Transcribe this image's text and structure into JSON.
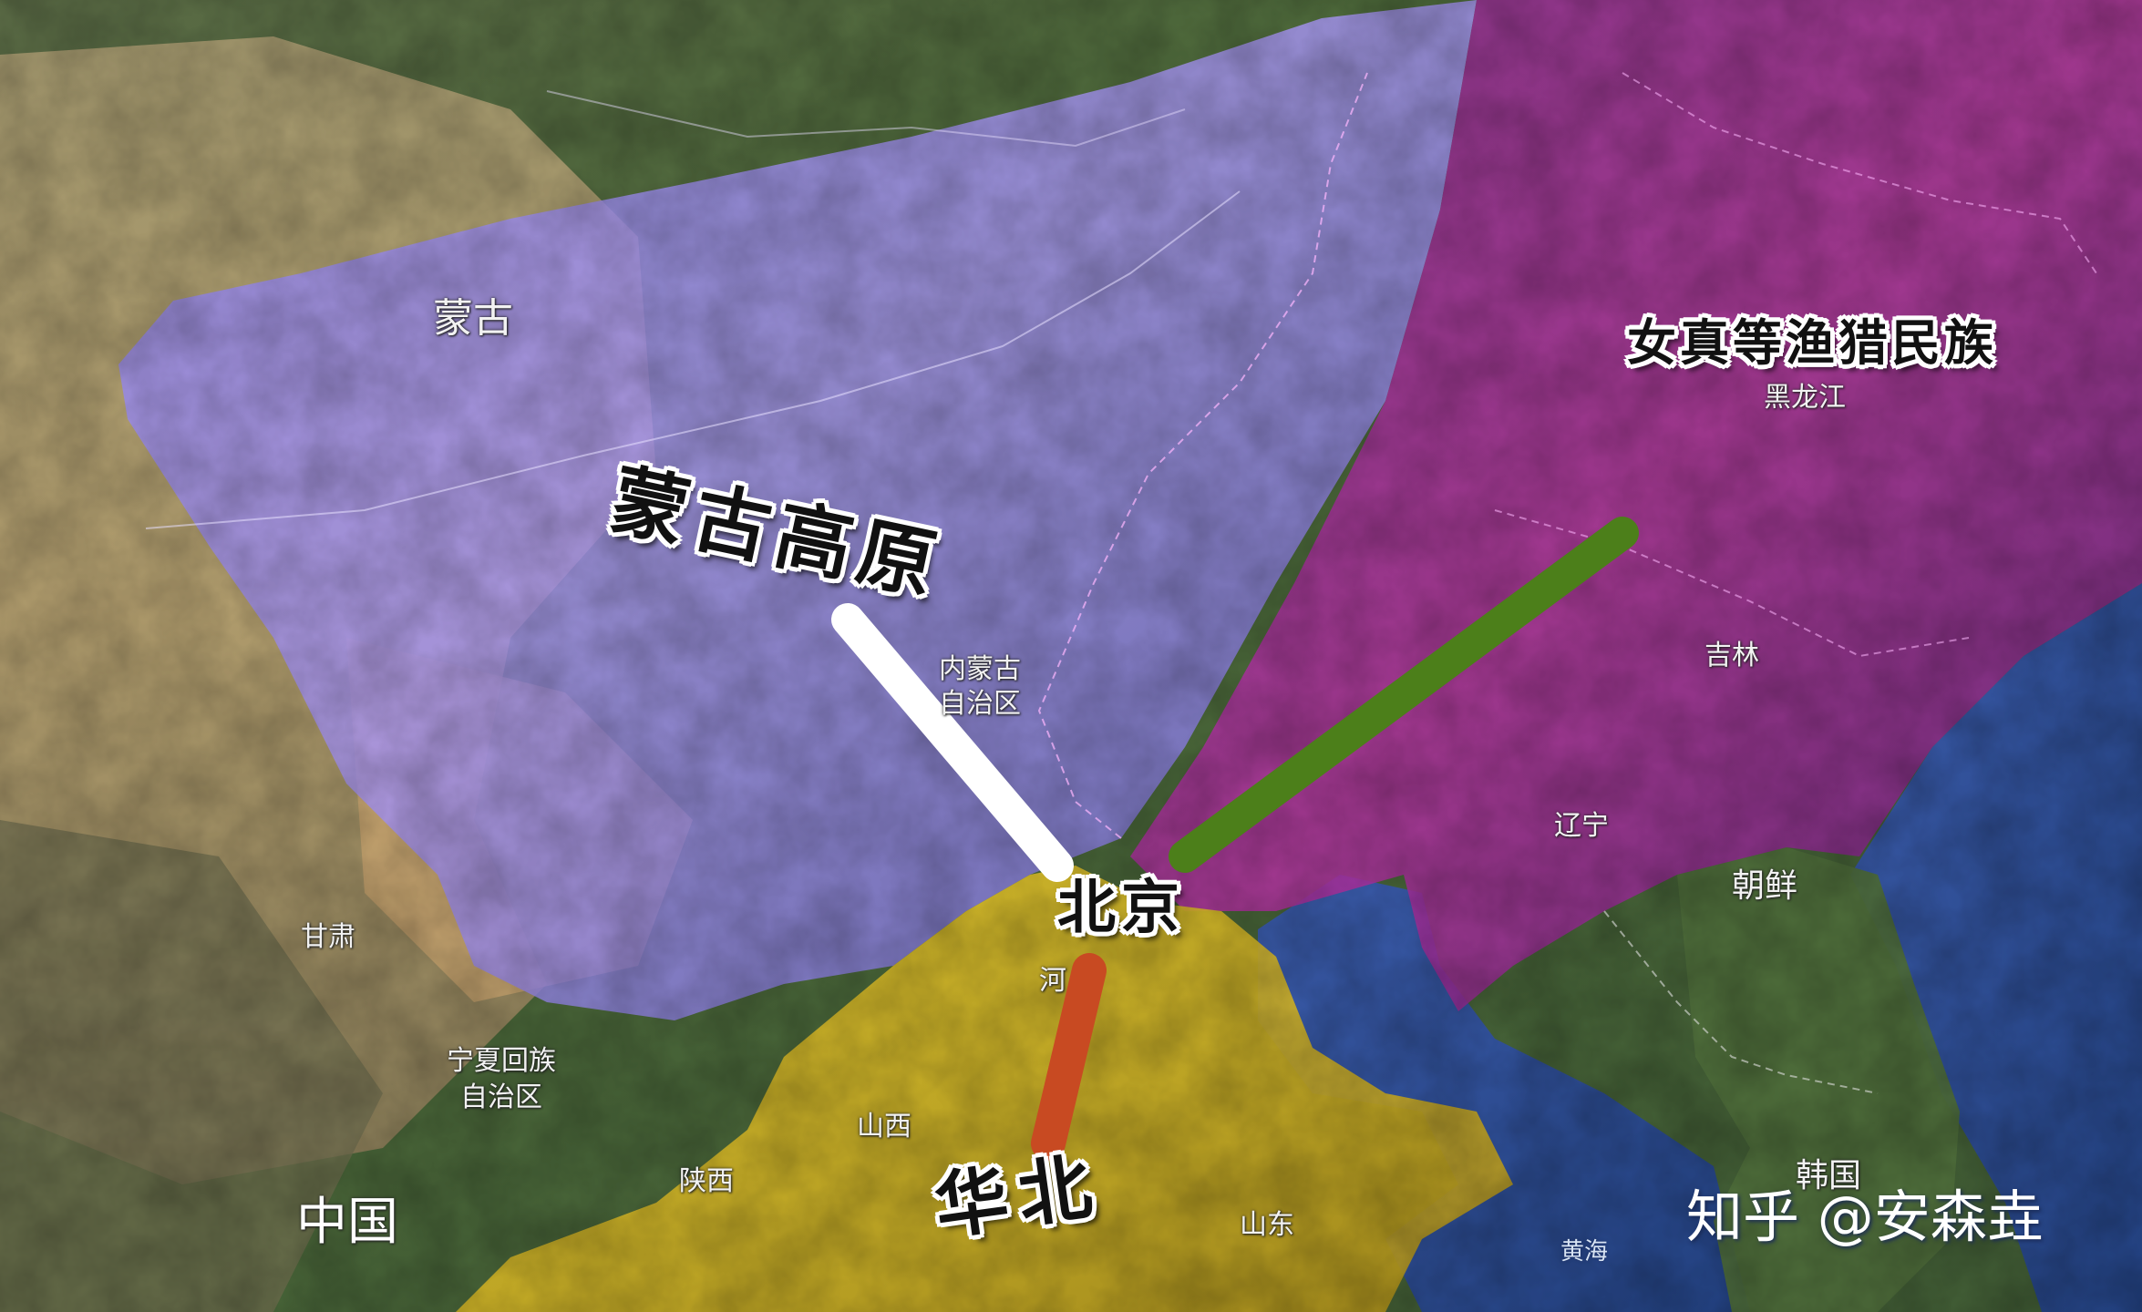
{
  "map": {
    "colors": {
      "terrain_green": "#4f6a3a",
      "terrain_desert": "#b49a6a",
      "sea": "#2e4d96",
      "mongolia_zone": "#9a8af0",
      "jurchen_zone": "#a52a9c",
      "huabei_zone": "#d4b824",
      "route_mongolia": "#ffffff",
      "route_jurchen": "#4c7f1a",
      "route_huabei": "#c84a22"
    },
    "labels": {
      "mongolia_country": "蒙古",
      "nei_menggu_line1": "内蒙古",
      "nei_menggu_line2": "自治区",
      "heilongjiang": "黑龙江",
      "jilin": "吉林",
      "liaoning": "辽宁",
      "chaoxian": "朝鲜",
      "gansu": "甘肃",
      "ningxia_line1": "宁夏回族",
      "ningxia_line2": "自治区",
      "shaanxi": "陕西",
      "shanxi": "山西",
      "hebei_partial": "河",
      "shandong": "山东",
      "hanguo": "韩国",
      "huanghai": "黄海",
      "zhongguo": "中国"
    },
    "regions": {
      "mongol_plateau": "蒙古高原",
      "jurchen": "女真等渔猎民族",
      "beijing": "北京",
      "huabei": "华北"
    },
    "watermark": "知乎 @安森垚"
  }
}
